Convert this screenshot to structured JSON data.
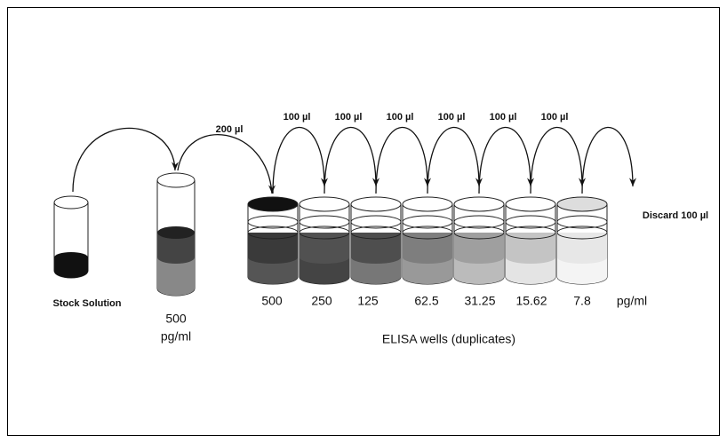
{
  "transfers": {
    "first": "200 µl",
    "wells": [
      "100 µl",
      "100 µl",
      "100 µl",
      "100 µl",
      "100 µl",
      "100 µl"
    ]
  },
  "tubes": {
    "stock": "Stock Solution",
    "working": {
      "concentration": "500",
      "unit": "pg/ml"
    }
  },
  "wells": {
    "concentrations": [
      "500",
      "250",
      "125",
      "62.5",
      "31.25",
      "15.62",
      "7.8"
    ],
    "unit": "pg/ml",
    "caption": "ELISA wells (duplicates)"
  },
  "discard": "Discard 100 µl"
}
